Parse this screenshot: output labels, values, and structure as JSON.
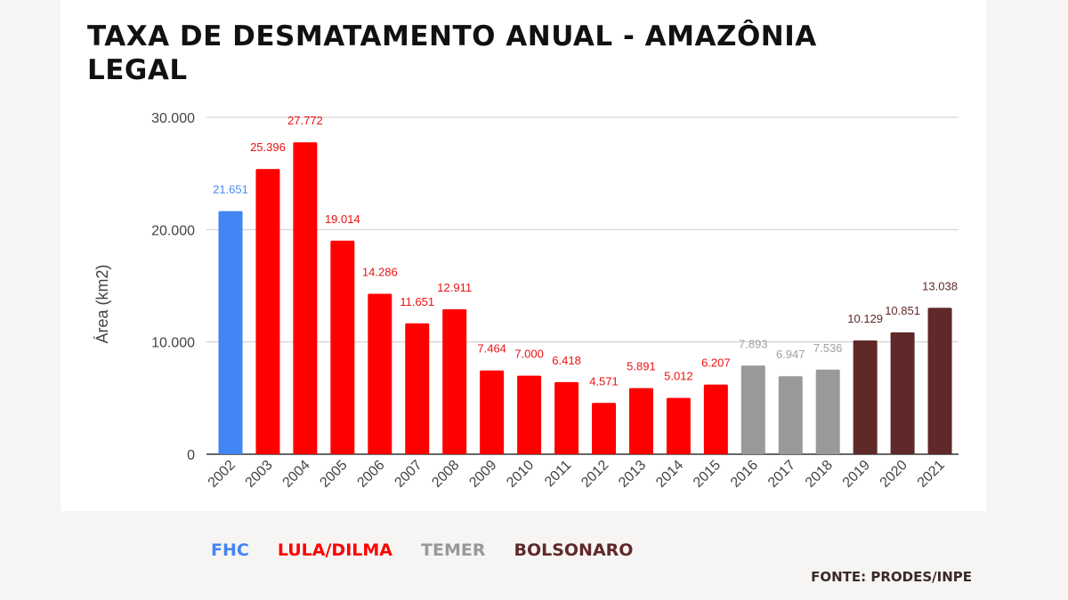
{
  "title": "TAXA DE DESMATAMENTO ANUAL - AMAZÔNIA LEGAL",
  "source": "FONTE: PRODES/INPE",
  "legend": [
    {
      "label": "FHC",
      "color": "#4285f4"
    },
    {
      "label": "LULA/DILMA",
      "color": "#ff0000"
    },
    {
      "label": "TEMER",
      "color": "#999999"
    },
    {
      "label": "BOLSONARO",
      "color": "#5f2929"
    }
  ],
  "chart_data": {
    "type": "bar",
    "title": "TAXA DE DESMATAMENTO ANUAL - AMAZÔNIA LEGAL",
    "xlabel": "",
    "ylabel": "Área (km2)",
    "ylim": [
      0,
      30000
    ],
    "yticks": [
      "0",
      "10.000",
      "20.000",
      "30.000"
    ],
    "grid": true,
    "categories": [
      "2002",
      "2003",
      "2004",
      "2005",
      "2006",
      "2007",
      "2008",
      "2009",
      "2010",
      "2011",
      "2012",
      "2013",
      "2014",
      "2015",
      "2016",
      "2017",
      "2018",
      "2019",
      "2020",
      "2021"
    ],
    "values": [
      21651,
      25396,
      27772,
      19014,
      14286,
      11651,
      12911,
      7464,
      7000,
      6418,
      4571,
      5891,
      5012,
      6207,
      7893,
      6947,
      7536,
      10129,
      10851,
      13038
    ],
    "data_labels": [
      "21.651",
      "25.396",
      "27.772",
      "19.014",
      "14.286",
      "11.651",
      "12.911",
      "7.464",
      "7.000",
      "6.418",
      "4.571",
      "5.891",
      "5.012",
      "6.207",
      "7.893",
      "6.947",
      "7.536",
      "10.129",
      "10.851",
      "13.038"
    ],
    "bar_colors": [
      "#4285f4",
      "#ff0000",
      "#ff0000",
      "#ff0000",
      "#ff0000",
      "#ff0000",
      "#ff0000",
      "#ff0000",
      "#ff0000",
      "#ff0000",
      "#ff0000",
      "#ff0000",
      "#ff0000",
      "#ff0000",
      "#999999",
      "#999999",
      "#999999",
      "#5f2929",
      "#5f2929",
      "#5f2929"
    ],
    "label_colors": [
      "#4a8cf0",
      "#ee1111",
      "#ee1111",
      "#ee1111",
      "#ee1111",
      "#ee1111",
      "#ee1111",
      "#ee1111",
      "#ee1111",
      "#ee1111",
      "#ee1111",
      "#ee1111",
      "#ee1111",
      "#ee1111",
      "#a0a0a0",
      "#a0a0a0",
      "#a0a0a0",
      "#5f2929",
      "#5f2929",
      "#5f2929"
    ],
    "legend_position": "bottom-left"
  }
}
